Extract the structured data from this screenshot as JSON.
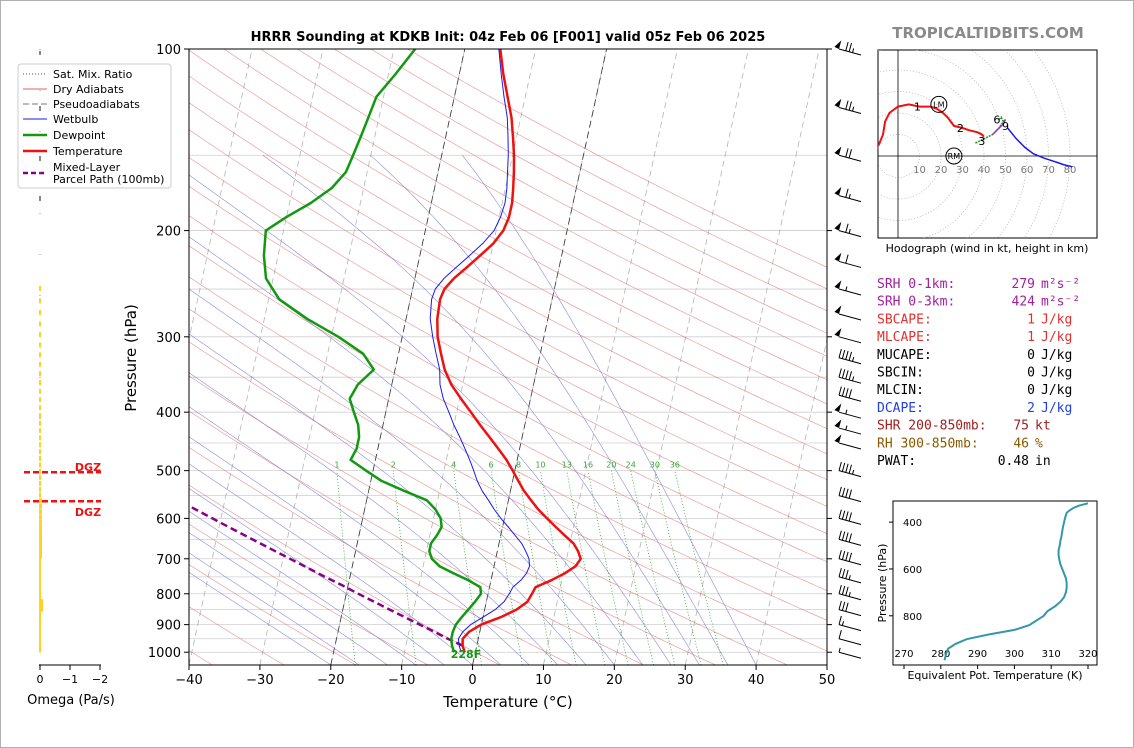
{
  "title": "HRRR Sounding at KDKB Init: 04z Feb 06 [F001] valid 05z Feb 06 2025",
  "watermark": "TROPICALTIDBITS.COM",
  "skewt": {
    "xlabel": "Temperature (°C)",
    "ylabel": "Pressure (hPa)",
    "xlim": [
      -40,
      50
    ],
    "plim": [
      1050,
      100
    ],
    "xticks": [
      "−40",
      "−30",
      "−20",
      "−10",
      "0",
      "10",
      "20",
      "30",
      "40",
      "50"
    ],
    "xtick_values": [
      -40,
      -30,
      -20,
      -10,
      0,
      10,
      20,
      30,
      40,
      50
    ],
    "pticks": [
      "100",
      "200",
      "300",
      "400",
      "500",
      "600",
      "700",
      "800",
      "900",
      "1000"
    ],
    "ptick_values": [
      100,
      200,
      300,
      400,
      500,
      600,
      700,
      800,
      900,
      1000
    ],
    "surface_label": "228F",
    "mixing_ratio_labels": [
      "1",
      "2",
      "4",
      "6",
      "8",
      "10",
      "13",
      "16",
      "20",
      "24",
      "30",
      "36"
    ],
    "mixing_ratio_values": [
      1,
      2,
      4,
      6,
      8,
      10,
      13,
      16,
      20,
      24,
      30,
      36
    ],
    "colors": {
      "temperature": "#ee1111",
      "dewpoint": "#119911",
      "wetbulb": "#1a1aee",
      "parcel": "#880088",
      "dry": "#e06060",
      "moist": "#7070d0",
      "mixing": "#33aa33"
    },
    "temperature": [
      [
        1000,
        -1.5
      ],
      [
        975,
        -2.0
      ],
      [
        950,
        -2.2
      ],
      [
        925,
        -1.5
      ],
      [
        900,
        0.0
      ],
      [
        875,
        2.5
      ],
      [
        850,
        4.5
      ],
      [
        825,
        5.8
      ],
      [
        800,
        6.2
      ],
      [
        780,
        6.5
      ],
      [
        760,
        8.5
      ],
      [
        740,
        10.2
      ],
      [
        720,
        11.5
      ],
      [
        700,
        12.0
      ],
      [
        680,
        11.4
      ],
      [
        660,
        10.5
      ],
      [
        640,
        9.0
      ],
      [
        620,
        7.5
      ],
      [
        600,
        6.0
      ],
      [
        580,
        4.5
      ],
      [
        560,
        3.2
      ],
      [
        540,
        1.9
      ],
      [
        520,
        0.8
      ],
      [
        500,
        -0.3
      ],
      [
        480,
        -1.5
      ],
      [
        460,
        -3.0
      ],
      [
        440,
        -4.6
      ],
      [
        420,
        -6.3
      ],
      [
        400,
        -8.0
      ],
      [
        380,
        -9.8
      ],
      [
        360,
        -11.6
      ],
      [
        340,
        -13.0
      ],
      [
        320,
        -14.0
      ],
      [
        300,
        -15.0
      ],
      [
        280,
        -15.6
      ],
      [
        260,
        -15.8
      ],
      [
        250,
        -15.5
      ],
      [
        240,
        -14.5
      ],
      [
        230,
        -13.0
      ],
      [
        220,
        -11.5
      ],
      [
        210,
        -10.0
      ],
      [
        200,
        -9.0
      ],
      [
        190,
        -8.6
      ],
      [
        180,
        -8.6
      ],
      [
        170,
        -8.9
      ],
      [
        160,
        -9.3
      ],
      [
        150,
        -9.8
      ],
      [
        140,
        -10.5
      ],
      [
        130,
        -11.3
      ],
      [
        120,
        -12.5
      ],
      [
        110,
        -13.8
      ],
      [
        100,
        -15.0
      ]
    ],
    "dewpoint": [
      [
        1000,
        -3.0
      ],
      [
        975,
        -3.5
      ],
      [
        950,
        -3.8
      ],
      [
        925,
        -3.8
      ],
      [
        900,
        -3.6
      ],
      [
        875,
        -3.0
      ],
      [
        850,
        -2.3
      ],
      [
        825,
        -1.6
      ],
      [
        800,
        -1.0
      ],
      [
        780,
        -1.3
      ],
      [
        760,
        -3.2
      ],
      [
        740,
        -5.5
      ],
      [
        720,
        -7.7
      ],
      [
        700,
        -9.0
      ],
      [
        680,
        -9.6
      ],
      [
        660,
        -9.6
      ],
      [
        640,
        -9.0
      ],
      [
        620,
        -8.6
      ],
      [
        600,
        -9.0
      ],
      [
        580,
        -10.0
      ],
      [
        560,
        -11.5
      ],
      [
        540,
        -15.0
      ],
      [
        520,
        -18.5
      ],
      [
        500,
        -21.0
      ],
      [
        480,
        -23.5
      ],
      [
        460,
        -23.0
      ],
      [
        440,
        -23.0
      ],
      [
        420,
        -23.5
      ],
      [
        400,
        -24.5
      ],
      [
        380,
        -25.5
      ],
      [
        360,
        -24.8
      ],
      [
        340,
        -23.0
      ],
      [
        320,
        -25.0
      ],
      [
        300,
        -29.0
      ],
      [
        280,
        -34.0
      ],
      [
        260,
        -38.5
      ],
      [
        240,
        -41.0
      ],
      [
        220,
        -42.0
      ],
      [
        200,
        -42.5
      ],
      [
        190,
        -40.0
      ],
      [
        180,
        -37.0
      ],
      [
        170,
        -34.5
      ],
      [
        160,
        -33.0
      ],
      [
        150,
        -32.5
      ],
      [
        140,
        -32.0
      ],
      [
        130,
        -31.5
      ],
      [
        120,
        -31.0
      ],
      [
        110,
        -29.0
      ],
      [
        100,
        -27.0
      ]
    ],
    "wetbulb": [
      [
        1000,
        -2.0
      ],
      [
        975,
        -2.5
      ],
      [
        950,
        -2.8
      ],
      [
        925,
        -2.4
      ],
      [
        900,
        -1.5
      ],
      [
        875,
        0.0
      ],
      [
        850,
        1.5
      ],
      [
        825,
        2.5
      ],
      [
        800,
        3.0
      ],
      [
        780,
        3.3
      ],
      [
        760,
        4.2
      ],
      [
        740,
        4.8
      ],
      [
        720,
        5.0
      ],
      [
        700,
        4.7
      ],
      [
        680,
        4.0
      ],
      [
        660,
        3.2
      ],
      [
        640,
        2.0
      ],
      [
        620,
        0.8
      ],
      [
        600,
        -0.5
      ],
      [
        580,
        -1.7
      ],
      [
        560,
        -2.8
      ],
      [
        540,
        -4.0
      ],
      [
        520,
        -5.0
      ],
      [
        500,
        -5.8
      ],
      [
        480,
        -6.7
      ],
      [
        460,
        -7.7
      ],
      [
        440,
        -8.8
      ],
      [
        420,
        -10.0
      ],
      [
        400,
        -11.1
      ],
      [
        380,
        -12.3
      ],
      [
        360,
        -13.2
      ],
      [
        340,
        -13.7
      ],
      [
        320,
        -14.7
      ],
      [
        300,
        -15.7
      ],
      [
        280,
        -16.6
      ],
      [
        260,
        -17.0
      ],
      [
        250,
        -16.8
      ],
      [
        240,
        -15.9
      ],
      [
        230,
        -14.5
      ],
      [
        220,
        -13.0
      ],
      [
        210,
        -11.5
      ],
      [
        200,
        -10.3
      ],
      [
        190,
        -9.8
      ],
      [
        180,
        -9.6
      ],
      [
        170,
        -9.8
      ],
      [
        160,
        -10.2
      ],
      [
        150,
        -10.6
      ],
      [
        140,
        -11.2
      ],
      [
        130,
        -11.9
      ],
      [
        120,
        -13.0
      ],
      [
        110,
        -14.1
      ],
      [
        100,
        -15.2
      ]
    ],
    "parcel": [
      [
        975,
        -2.0
      ],
      [
        950,
        -4.3
      ],
      [
        925,
        -6.4
      ],
      [
        900,
        -8.7
      ],
      [
        875,
        -11.0
      ],
      [
        850,
        -13.4
      ],
      [
        825,
        -15.8
      ],
      [
        800,
        -18.3
      ],
      [
        775,
        -20.8
      ],
      [
        750,
        -23.5
      ],
      [
        725,
        -26.2
      ],
      [
        700,
        -29.0
      ],
      [
        675,
        -31.9
      ],
      [
        650,
        -34.9
      ],
      [
        625,
        -38.0
      ],
      [
        600,
        -41.2
      ],
      [
        575,
        -44.5
      ],
      [
        550,
        -47.9
      ],
      [
        525,
        -51.5
      ],
      [
        500,
        -55.3
      ],
      [
        475,
        -59.1
      ],
      [
        450,
        -63.2
      ],
      [
        425,
        -67.5
      ],
      [
        400,
        -71.9
      ],
      [
        375,
        -76.7
      ],
      [
        350,
        -81.5
      ],
      [
        325,
        -86.8
      ],
      [
        300,
        -92.3
      ],
      [
        290,
        -94.8
      ]
    ]
  },
  "legend": {
    "items": [
      "Sat. Mix. Ratio",
      "Dry Adiabats",
      "Pseudoadiabats",
      "Wetbulb",
      "Dewpoint",
      "Temperature",
      "Mixed-Layer",
      "Parcel Path (100mb)"
    ]
  },
  "omega": {
    "xlabel": "Omega (Pa/s)",
    "xticks": [
      "0",
      "−1",
      "−2"
    ],
    "dgz_label": "DGZ",
    "dgz_top_hpa": 503,
    "dgz_bottom_hpa": 562,
    "bar_color": "#ffd21f"
  },
  "hodograph": {
    "caption": "Hodograph (wind in kt, height in km)",
    "ring_labels": [
      "10",
      "20",
      "30",
      "40",
      "50",
      "60",
      "70",
      "80"
    ],
    "ring_values": [
      10,
      20,
      30,
      40,
      50,
      60,
      70,
      80
    ],
    "height_labels": [
      "1",
      "2",
      "3",
      "6",
      "9"
    ],
    "markers": [
      "LM",
      "RM"
    ],
    "red_trace": [
      [
        -9,
        5
      ],
      [
        -7,
        10
      ],
      [
        -6,
        16
      ],
      [
        -4,
        20
      ],
      [
        0,
        23
      ],
      [
        5,
        24
      ],
      [
        10,
        23
      ],
      [
        15,
        23
      ],
      [
        18,
        22
      ],
      [
        21,
        20
      ],
      [
        23,
        18
      ],
      [
        26,
        14
      ],
      [
        30,
        13
      ],
      [
        33,
        12
      ],
      [
        37,
        11
      ],
      [
        39,
        10
      ],
      [
        40,
        9
      ]
    ],
    "green_trace": [
      [
        36,
        6
      ],
      [
        40,
        8
      ],
      [
        44,
        10
      ],
      [
        47,
        13
      ],
      [
        49,
        16
      ],
      [
        48,
        18
      ],
      [
        47,
        17
      ]
    ],
    "purple_trace": [
      [
        44,
        10
      ],
      [
        46,
        12
      ],
      [
        49,
        15
      ],
      [
        50,
        17
      ],
      [
        49,
        16
      ]
    ],
    "blue_trace": [
      [
        51,
        13
      ],
      [
        55,
        8
      ],
      [
        59,
        4
      ],
      [
        63,
        1
      ],
      [
        68,
        -1
      ],
      [
        71,
        -2
      ],
      [
        74,
        -3
      ],
      [
        77,
        -4
      ],
      [
        81,
        -5
      ]
    ],
    "label_points": [
      [
        9,
        23
      ],
      [
        29,
        13
      ],
      [
        39,
        7
      ],
      [
        46,
        17
      ],
      [
        50,
        14
      ]
    ],
    "lm_point": [
      19,
      24
    ],
    "rm_point": [
      26,
      0
    ]
  },
  "indices": [
    {
      "label": "SRH 0-1km:",
      "value": "279",
      "unit": "m²s⁻²",
      "color": "#a020a0"
    },
    {
      "label": "SRH 0-3km:",
      "value": "424",
      "unit": "m²s⁻²",
      "color": "#a020a0"
    },
    {
      "label": "SBCAPE:",
      "value": "1",
      "unit": "J/kg",
      "color": "#e03030"
    },
    {
      "label": "MLCAPE:",
      "value": "1",
      "unit": "J/kg",
      "color": "#e03030"
    },
    {
      "label": "MUCAPE:",
      "value": "0",
      "unit": "J/kg",
      "color": "#000000"
    },
    {
      "label": "SBCIN:",
      "value": "0",
      "unit": "J/kg",
      "color": "#000000"
    },
    {
      "label": "MLCIN:",
      "value": "0",
      "unit": "J/kg",
      "color": "#000000"
    },
    {
      "label": "DCAPE:",
      "value": "2",
      "unit": "J/kg",
      "color": "#2040e0"
    },
    {
      "label": "SHR 200-850mb:",
      "value": "75",
      "unit": "kt",
      "color": "#a02020"
    },
    {
      "label": "RH 300-850mb:",
      "value": "46",
      "unit": "%",
      "color": "#8a5a00"
    },
    {
      "label": "PWAT:",
      "value": "0.48",
      "unit": "in",
      "color": "#000000"
    }
  ],
  "theta_e": {
    "xlabel": "Equivalent Pot. Temperature (K)",
    "ylabel": "Pressure (hPa)",
    "xticks": [
      "270",
      "280",
      "290",
      "300",
      "310",
      "320"
    ],
    "xtick_values": [
      270,
      280,
      290,
      300,
      310,
      320
    ],
    "yticks": [
      "400",
      "600",
      "800"
    ],
    "ytick_values": [
      400,
      600,
      800
    ],
    "color": "#3399aa",
    "profile": [
      [
        990,
        281
      ],
      [
        960,
        281.5
      ],
      [
        940,
        282
      ],
      [
        920,
        284
      ],
      [
        900,
        287
      ],
      [
        880,
        293
      ],
      [
        860,
        300
      ],
      [
        840,
        304
      ],
      [
        820,
        306
      ],
      [
        800,
        308
      ],
      [
        780,
        309
      ],
      [
        760,
        311
      ],
      [
        740,
        312.5
      ],
      [
        720,
        313.5
      ],
      [
        700,
        314
      ],
      [
        680,
        314.2
      ],
      [
        660,
        314.2
      ],
      [
        640,
        314
      ],
      [
        620,
        313.5
      ],
      [
        600,
        313
      ],
      [
        580,
        312.5
      ],
      [
        560,
        312.2
      ],
      [
        540,
        312
      ],
      [
        520,
        312
      ],
      [
        500,
        312.3
      ],
      [
        480,
        312.5
      ],
      [
        460,
        312.8
      ],
      [
        440,
        313
      ],
      [
        420,
        313.2
      ],
      [
        400,
        313.5
      ],
      [
        380,
        313.8
      ],
      [
        360,
        314.2
      ],
      [
        350,
        315
      ],
      [
        340,
        316
      ],
      [
        330,
        317.5
      ],
      [
        320,
        320
      ]
    ]
  },
  "barbs": [
    {
      "p": 100,
      "spd": 75
    },
    {
      "p": 125,
      "spd": 75
    },
    {
      "p": 150,
      "spd": 70
    },
    {
      "p": 175,
      "spd": 65
    },
    {
      "p": 200,
      "spd": 65
    },
    {
      "p": 225,
      "spd": 60
    },
    {
      "p": 250,
      "spd": 55
    },
    {
      "p": 275,
      "spd": 50
    },
    {
      "p": 300,
      "spd": 50
    },
    {
      "p": 325,
      "spd": 45
    },
    {
      "p": 350,
      "spd": 45
    },
    {
      "p": 375,
      "spd": 40
    },
    {
      "p": 400,
      "spd": 55
    },
    {
      "p": 425,
      "spd": 55
    },
    {
      "p": 450,
      "spd": 50
    },
    {
      "p": 500,
      "spd": 45
    },
    {
      "p": 550,
      "spd": 40
    },
    {
      "p": 600,
      "spd": 40
    },
    {
      "p": 650,
      "spd": 40
    },
    {
      "p": 700,
      "spd": 40
    },
    {
      "p": 750,
      "spd": 35
    },
    {
      "p": 800,
      "spd": 35
    },
    {
      "p": 850,
      "spd": 30
    },
    {
      "p": 900,
      "spd": 15
    },
    {
      "p": 950,
      "spd": 10
    },
    {
      "p": 1000,
      "spd": 5
    }
  ]
}
